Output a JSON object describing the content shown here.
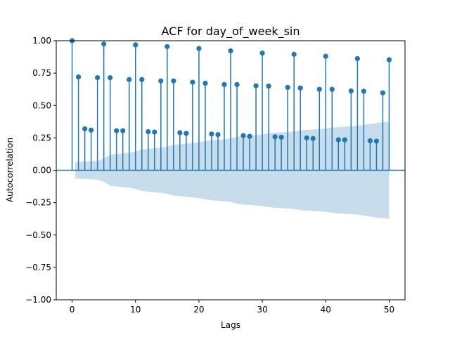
{
  "chart_data": {
    "type": "scatter",
    "subtype": "acf-stem",
    "title": "ACF for day_of_week_sin",
    "xlabel": "Lags",
    "ylabel": "Autocorrelation",
    "xlim": [
      -2.5,
      52.5
    ],
    "ylim": [
      -1.0,
      1.0
    ],
    "x_ticks": [
      0,
      10,
      20,
      30,
      40,
      50
    ],
    "x_tick_labels": [
      "0",
      "10",
      "20",
      "30",
      "40",
      "50"
    ],
    "y_ticks": [
      -1.0,
      -0.75,
      -0.5,
      -0.25,
      0.0,
      0.25,
      0.5,
      0.75,
      1.0
    ],
    "y_tick_labels": [
      "−1.00",
      "−0.75",
      "−0.50",
      "−0.25",
      "0.00",
      "0.25",
      "0.50",
      "0.75",
      "1.00"
    ],
    "lags": [
      0,
      1,
      2,
      3,
      4,
      5,
      6,
      7,
      8,
      9,
      10,
      11,
      12,
      13,
      14,
      15,
      16,
      17,
      18,
      19,
      20,
      21,
      22,
      23,
      24,
      25,
      26,
      27,
      28,
      29,
      30,
      31,
      32,
      33,
      34,
      35,
      36,
      37,
      38,
      39,
      40,
      41,
      42,
      43,
      44,
      45,
      46,
      47,
      48,
      49,
      50
    ],
    "values": [
      1.0,
      0.72,
      0.32,
      0.31,
      0.715,
      0.975,
      0.715,
      0.305,
      0.305,
      0.7,
      0.968,
      0.7,
      0.298,
      0.295,
      0.69,
      0.955,
      0.69,
      0.29,
      0.285,
      0.68,
      0.94,
      0.672,
      0.28,
      0.275,
      0.662,
      0.922,
      0.662,
      0.268,
      0.262,
      0.652,
      0.905,
      0.65,
      0.258,
      0.255,
      0.64,
      0.895,
      0.635,
      0.25,
      0.245,
      0.625,
      0.88,
      0.625,
      0.235,
      0.235,
      0.612,
      0.862,
      0.61,
      0.228,
      0.225,
      0.598,
      0.853
    ],
    "confidence_band": [
      0.06,
      0.065,
      0.067,
      0.07,
      0.072,
      0.09,
      0.12,
      0.125,
      0.13,
      0.135,
      0.145,
      0.16,
      0.165,
      0.17,
      0.175,
      0.182,
      0.195,
      0.2,
      0.205,
      0.21,
      0.215,
      0.225,
      0.232,
      0.235,
      0.24,
      0.245,
      0.258,
      0.265,
      0.268,
      0.272,
      0.276,
      0.285,
      0.29,
      0.293,
      0.296,
      0.3,
      0.307,
      0.312,
      0.315,
      0.318,
      0.321,
      0.328,
      0.333,
      0.336,
      0.339,
      0.342,
      0.35,
      0.358,
      0.365,
      0.37,
      0.375
    ],
    "grid": false,
    "colors": {
      "marker": "#1f77b4",
      "stem": "#1f77b4",
      "band": "#1f77b4",
      "zero_line": "#1f77b4"
    }
  }
}
